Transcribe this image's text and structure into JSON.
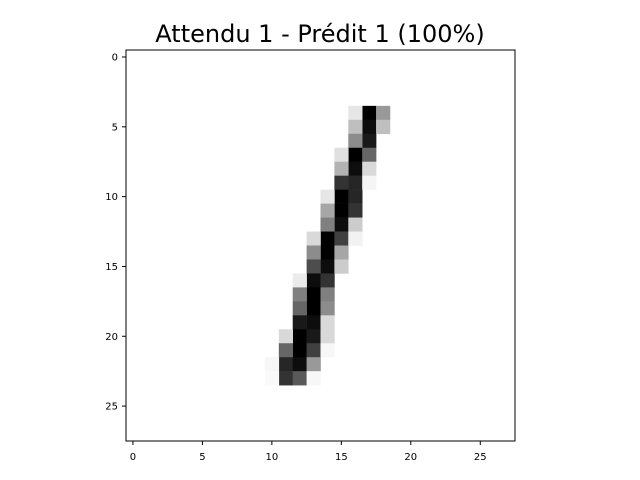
{
  "chart_data": {
    "type": "heatmap",
    "title": "Attendu 1 - Prédit 1 (100%)",
    "xlabel": "",
    "ylabel": "",
    "rows": 28,
    "cols": 28,
    "xlim": [
      -0.5,
      27.5
    ],
    "ylim": [
      27.5,
      -0.5
    ],
    "xticks": [
      0,
      5,
      10,
      15,
      20,
      25
    ],
    "yticks": [
      0,
      5,
      10,
      15,
      20,
      25
    ],
    "grid": false,
    "colormap": "gray_r",
    "value_range": [
      0,
      1
    ],
    "pixels": [
      [
        4,
        17,
        1.0
      ],
      [
        4,
        16,
        0.1
      ],
      [
        4,
        18,
        0.4
      ],
      [
        5,
        17,
        0.95
      ],
      [
        5,
        16,
        0.25
      ],
      [
        5,
        18,
        0.25
      ],
      [
        6,
        17,
        0.9
      ],
      [
        6,
        16,
        0.45
      ],
      [
        7,
        16,
        1.0
      ],
      [
        7,
        17,
        0.6
      ],
      [
        7,
        15,
        0.12
      ],
      [
        8,
        16,
        0.95
      ],
      [
        8,
        15,
        0.3
      ],
      [
        8,
        17,
        0.15
      ],
      [
        9,
        16,
        0.85
      ],
      [
        9,
        15,
        0.8
      ],
      [
        9,
        17,
        0.04
      ],
      [
        10,
        15,
        1.0
      ],
      [
        10,
        16,
        0.85
      ],
      [
        10,
        14,
        0.1
      ],
      [
        11,
        15,
        1.0
      ],
      [
        11,
        16,
        0.8
      ],
      [
        11,
        14,
        0.35
      ],
      [
        12,
        15,
        0.95
      ],
      [
        12,
        14,
        0.5
      ],
      [
        12,
        16,
        0.2
      ],
      [
        13,
        14,
        1.0
      ],
      [
        13,
        15,
        0.75
      ],
      [
        13,
        13,
        0.15
      ],
      [
        13,
        16,
        0.05
      ],
      [
        14,
        14,
        1.0
      ],
      [
        14,
        13,
        0.45
      ],
      [
        14,
        15,
        0.35
      ],
      [
        15,
        14,
        0.95
      ],
      [
        15,
        13,
        0.7
      ],
      [
        15,
        15,
        0.2
      ],
      [
        16,
        13,
        0.95
      ],
      [
        16,
        14,
        0.8
      ],
      [
        16,
        12,
        0.08
      ],
      [
        17,
        13,
        1.0
      ],
      [
        17,
        12,
        0.5
      ],
      [
        17,
        14,
        0.5
      ],
      [
        18,
        13,
        1.0
      ],
      [
        18,
        12,
        0.6
      ],
      [
        18,
        14,
        0.45
      ],
      [
        19,
        13,
        0.95
      ],
      [
        19,
        12,
        0.9
      ],
      [
        19,
        14,
        0.15
      ],
      [
        20,
        12,
        1.0
      ],
      [
        20,
        13,
        0.9
      ],
      [
        20,
        11,
        0.15
      ],
      [
        20,
        14,
        0.15
      ],
      [
        21,
        12,
        1.0
      ],
      [
        21,
        11,
        0.6
      ],
      [
        21,
        13,
        0.75
      ],
      [
        21,
        14,
        0.03
      ],
      [
        22,
        11,
        0.85
      ],
      [
        22,
        12,
        0.95
      ],
      [
        22,
        13,
        0.4
      ],
      [
        22,
        10,
        0.03
      ],
      [
        23,
        11,
        0.8
      ],
      [
        23,
        12,
        0.65
      ],
      [
        23,
        10,
        0.02
      ],
      [
        23,
        13,
        0.03
      ]
    ]
  }
}
